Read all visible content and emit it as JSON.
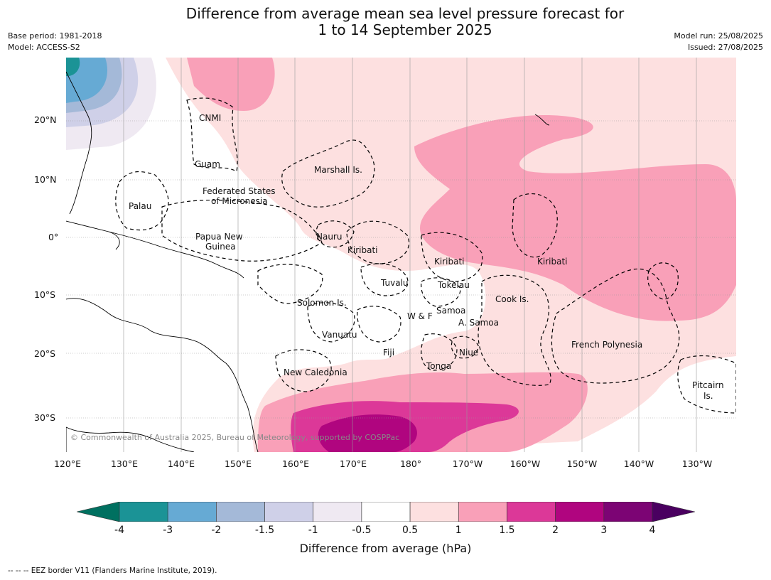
{
  "title": {
    "line1": "Difference from average mean sea level pressure forecast for",
    "line2": "1 to 14 September 2025"
  },
  "meta": {
    "base_period": "Base period: 1981-2018",
    "model": "Model: ACCESS-S2",
    "model_run": "Model run: 25/08/2025",
    "issued": "Issued: 27/08/2025"
  },
  "map": {
    "lat_labels": [
      "20°N",
      "10°N",
      "0°",
      "10°S",
      "20°S",
      "30°S"
    ],
    "lon_labels": [
      "120°E",
      "130°E",
      "140°E",
      "150°E",
      "160°E",
      "170°E",
      "180°",
      "170°W",
      "160°W",
      "150°W",
      "140°W",
      "130°W"
    ],
    "places": [
      "CNMI",
      "Guam",
      "Marshall Is.",
      "Federated States",
      "of Micronesia",
      "Palau",
      "Nauru",
      "Papua New",
      "Guinea",
      "Kiribati",
      "Kiribati",
      "Kiribati",
      "Tuvalu",
      "Tokelau",
      "Cook Is.",
      "Solomon Is.",
      "W & F",
      "Samoa",
      "A. Samoa",
      "Vanuatu",
      "Fiji",
      "Niue",
      "Tonga",
      "New Caledonia",
      "French Polynesia",
      "Pitcairn",
      "Is."
    ],
    "copyright": "© Commonwealth of Australia 2025, Bureau of Meteorology, supported by COSPPac"
  },
  "colorbar": {
    "label": "Difference from average (hPa)",
    "ticks": [
      "-4",
      "-3",
      "-2",
      "-1.5",
      "-1",
      "-0.5",
      "0.5",
      "1",
      "1.5",
      "2",
      "3",
      "4"
    ],
    "colors": [
      "#007060",
      "#1b9396",
      "#66aad4",
      "#a4b9d8",
      "#cfd0e8",
      "#efe9f2",
      "#ffffff",
      "#fde0e0",
      "#f9a0b8",
      "#dc3898",
      "#b0057f",
      "#7c0474",
      "#4a0060"
    ]
  },
  "footer": "--  --  -- EEZ border V11 (Flanders Marine Institute, 2019)."
}
